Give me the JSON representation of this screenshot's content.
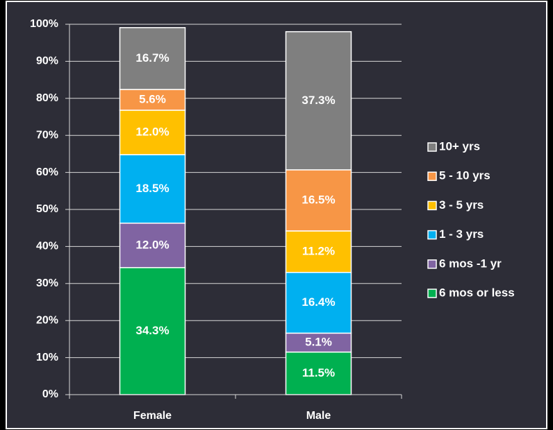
{
  "chart_data": {
    "type": "stacked_bar",
    "categories": [
      "Female",
      "Male"
    ],
    "series": [
      {
        "name": "6 mos or less",
        "color": "#00b050",
        "values": [
          34.3,
          11.5
        ],
        "value_labels": [
          "34.3%",
          "11.5%"
        ]
      },
      {
        "name": "6 mos -1 yr",
        "color": "#8064a2",
        "values": [
          12.0,
          5.1
        ],
        "value_labels": [
          "12.0%",
          "5.1%"
        ]
      },
      {
        "name": "1 - 3 yrs",
        "color": "#00b0f0",
        "values": [
          18.5,
          16.4
        ],
        "value_labels": [
          "18.5%",
          "16.4%"
        ]
      },
      {
        "name": "3 - 5 yrs",
        "color": "#ffc000",
        "values": [
          12.0,
          11.2
        ],
        "value_labels": [
          "12.0%",
          "11.2%"
        ]
      },
      {
        "name": "5 - 10 yrs",
        "color": "#f79646",
        "values": [
          5.6,
          16.5
        ],
        "value_labels": [
          "5.6%",
          "16.5%"
        ]
      },
      {
        "name": "10+ yrs",
        "color": "#7f7f7f",
        "values": [
          16.7,
          37.3
        ],
        "value_labels": [
          "16.7%",
          "37.3%"
        ]
      }
    ],
    "ylim": [
      0,
      100
    ],
    "yticks": [
      {
        "value": 0,
        "label": "0%"
      },
      {
        "value": 10,
        "label": "10%"
      },
      {
        "value": 20,
        "label": "20%"
      },
      {
        "value": 30,
        "label": "30%"
      },
      {
        "value": 40,
        "label": "40%"
      },
      {
        "value": 50,
        "label": "50%"
      },
      {
        "value": 60,
        "label": "60%"
      },
      {
        "value": 70,
        "label": "70%"
      },
      {
        "value": 80,
        "label": "80%"
      },
      {
        "value": 90,
        "label": "90%"
      },
      {
        "value": 100,
        "label": "100%"
      }
    ],
    "grid": true,
    "legend": "right"
  }
}
